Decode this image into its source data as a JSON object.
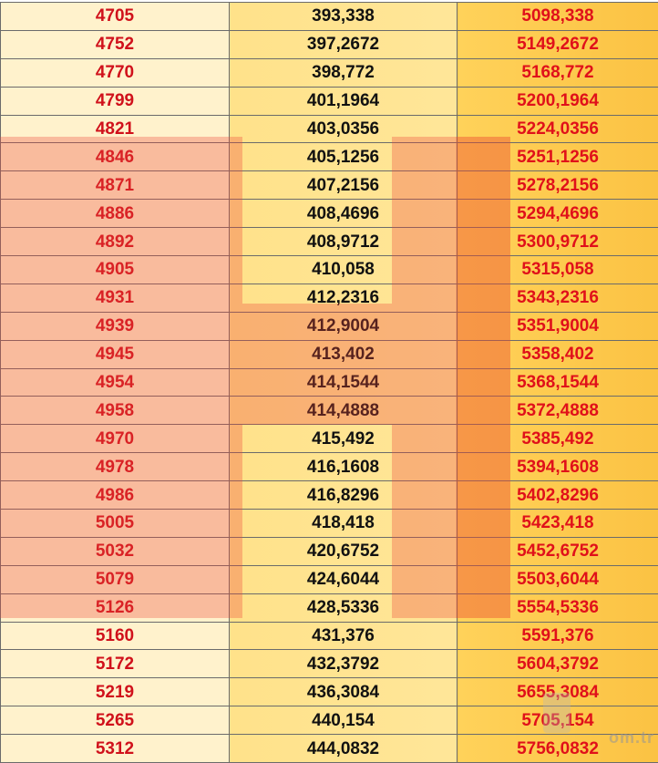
{
  "table": {
    "rows": [
      [
        "4705",
        "393,338",
        "5098,338"
      ],
      [
        "4752",
        "397,2672",
        "5149,2672"
      ],
      [
        "4770",
        "398,772",
        "5168,772"
      ],
      [
        "4799",
        "401,1964",
        "5200,1964"
      ],
      [
        "4821",
        "403,0356",
        "5224,0356"
      ],
      [
        "4846",
        "405,1256",
        "5251,1256"
      ],
      [
        "4871",
        "407,2156",
        "5278,2156"
      ],
      [
        "4886",
        "408,4696",
        "5294,4696"
      ],
      [
        "4892",
        "408,9712",
        "5300,9712"
      ],
      [
        "4905",
        "410,058",
        "5315,058"
      ],
      [
        "4931",
        "412,2316",
        "5343,2316"
      ],
      [
        "4939",
        "412,9004",
        "5351,9004"
      ],
      [
        "4945",
        "413,402",
        "5358,402"
      ],
      [
        "4954",
        "414,1544",
        "5368,1544"
      ],
      [
        "4958",
        "414,4888",
        "5372,4888"
      ],
      [
        "4970",
        "415,492",
        "5385,492"
      ],
      [
        "4978",
        "416,1608",
        "5394,1608"
      ],
      [
        "4986",
        "416,8296",
        "5402,8296"
      ],
      [
        "5005",
        "418,418",
        "5423,418"
      ],
      [
        "5032",
        "420,6752",
        "5452,6752"
      ],
      [
        "5079",
        "424,6044",
        "5503,6044"
      ],
      [
        "5126",
        "428,5336",
        "5554,5336"
      ],
      [
        "5160",
        "431,376",
        "5591,376"
      ],
      [
        "5172",
        "432,3792",
        "5604,3792"
      ],
      [
        "5219",
        "436,3084",
        "5655,3084"
      ],
      [
        "5265",
        "440,154",
        "5705,154"
      ],
      [
        "5312",
        "444,0832",
        "5756,0832"
      ]
    ]
  },
  "watermark": {
    "logo_icon": "h-logo-watermark",
    "site_text": "om.tr",
    "color": "#ec463c"
  },
  "colors": {
    "col1_text": "#d0111b",
    "col2_text": "#111111",
    "col3_text": "#e0101a",
    "col1_bg": "#fff2cc",
    "col2_bg": "#ffe699",
    "col3_bg": "#fbc243"
  }
}
